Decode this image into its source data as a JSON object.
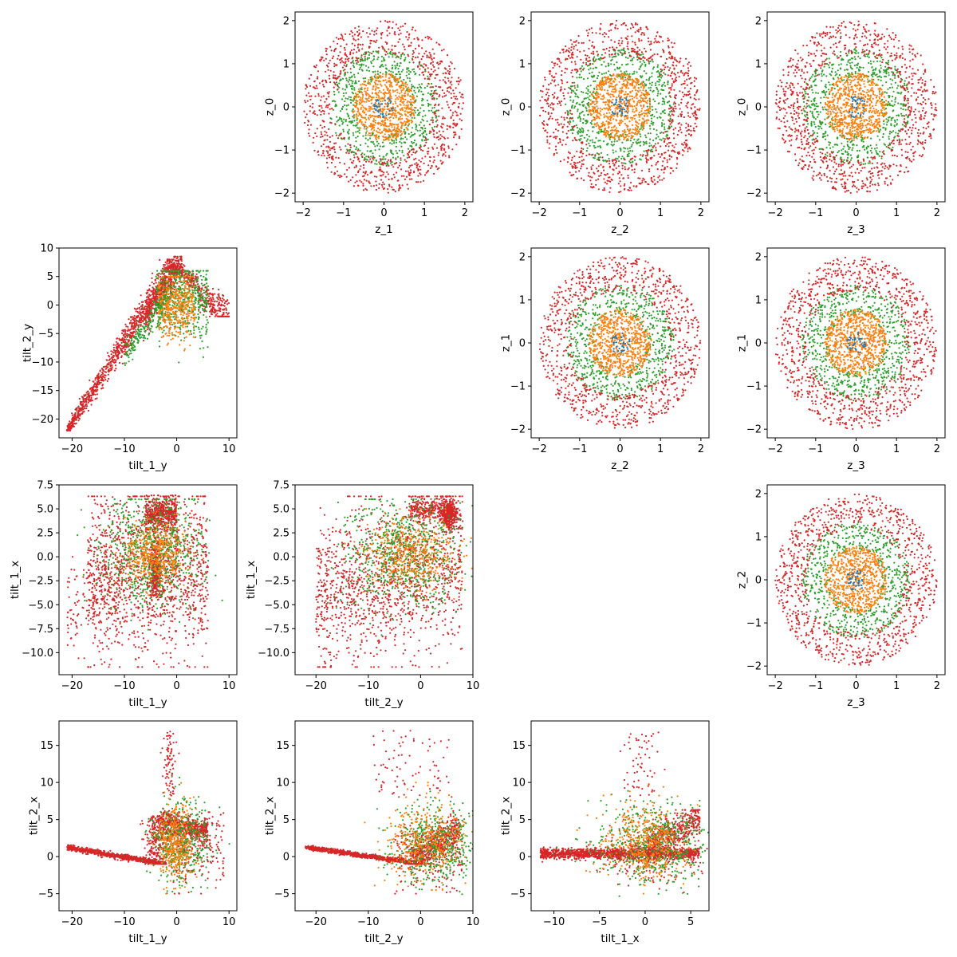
{
  "colors": {
    "blue": "#1f77b4",
    "orange": "#ff7f0e",
    "green": "#2ca02c",
    "red": "#d62728"
  },
  "chart_data": [
    {
      "id": "p01",
      "type": "scatter",
      "xlabel": "z_1",
      "ylabel": "z_0",
      "xlim": [
        -2.2,
        2.2
      ],
      "ylim": [
        -2.2,
        2.2
      ],
      "xticks": [
        -2,
        -1,
        0,
        1,
        2
      ],
      "yticks": [
        -2,
        -1,
        0,
        1,
        2
      ],
      "distribution": "disk",
      "grid": false
    },
    {
      "id": "p02",
      "type": "scatter",
      "xlabel": "z_2",
      "ylabel": "z_0",
      "xlim": [
        -2.2,
        2.2
      ],
      "ylim": [
        -2.2,
        2.2
      ],
      "xticks": [
        -2,
        -1,
        0,
        1,
        2
      ],
      "yticks": [
        -2,
        -1,
        0,
        1,
        2
      ],
      "distribution": "disk",
      "grid": false
    },
    {
      "id": "p03",
      "type": "scatter",
      "xlabel": "z_3",
      "ylabel": "z_0",
      "xlim": [
        -2.2,
        2.2
      ],
      "ylim": [
        -2.2,
        2.2
      ],
      "xticks": [
        -2,
        -1,
        0,
        1,
        2
      ],
      "yticks": [
        -2,
        -1,
        0,
        1,
        2
      ],
      "distribution": "disk",
      "grid": false
    },
    {
      "id": "p10",
      "type": "scatter",
      "xlabel": "tilt_1_y",
      "ylabel": "tilt_2_y",
      "xlim": [
        -22.5,
        11.5
      ],
      "ylim": [
        -23.3,
        10
      ],
      "xticks": [
        -20,
        -10,
        0,
        10
      ],
      "yticks": [
        -20,
        -15,
        -10,
        -5,
        0,
        5,
        10
      ],
      "distribution": "tilt1y_tilt2y",
      "grid": false
    },
    {
      "id": "p12",
      "type": "scatter",
      "xlabel": "z_2",
      "ylabel": "z_1",
      "xlim": [
        -2.2,
        2.2
      ],
      "ylim": [
        -2.2,
        2.2
      ],
      "xticks": [
        -2,
        -1,
        0,
        1,
        2
      ],
      "yticks": [
        -2,
        -1,
        0,
        1,
        2
      ],
      "distribution": "disk",
      "grid": false
    },
    {
      "id": "p13",
      "type": "scatter",
      "xlabel": "z_3",
      "ylabel": "z_1",
      "xlim": [
        -2.2,
        2.2
      ],
      "ylim": [
        -2.2,
        2.2
      ],
      "xticks": [
        -2,
        -1,
        0,
        1,
        2
      ],
      "yticks": [
        -2,
        -1,
        0,
        1,
        2
      ],
      "distribution": "disk",
      "grid": false
    },
    {
      "id": "p20",
      "type": "scatter",
      "xlabel": "tilt_1_y",
      "ylabel": "tilt_1_x",
      "xlim": [
        -22.5,
        11.5
      ],
      "ylim": [
        -12.3,
        7.5
      ],
      "xticks": [
        -20,
        -10,
        0,
        10
      ],
      "yticks": [
        -10.0,
        -7.5,
        -5.0,
        -2.5,
        0.0,
        2.5,
        5.0,
        7.5
      ],
      "ytick_labels": [
        "−10.0",
        "−7.5",
        "−5.0",
        "−2.5",
        "0.0",
        "2.5",
        "5.0",
        "7.5"
      ],
      "distribution": "tilt1y_tilt1x",
      "grid": false
    },
    {
      "id": "p21",
      "type": "scatter",
      "xlabel": "tilt_2_y",
      "ylabel": "tilt_1_x",
      "xlim": [
        -24,
        10
      ],
      "ylim": [
        -12.3,
        7.5
      ],
      "xticks": [
        -20,
        -10,
        0,
        10
      ],
      "yticks": [
        -10.0,
        -7.5,
        -5.0,
        -2.5,
        0.0,
        2.5,
        5.0,
        7.5
      ],
      "ytick_labels": [
        "−10.0",
        "−7.5",
        "−5.0",
        "−2.5",
        "0.0",
        "2.5",
        "5.0",
        "7.5"
      ],
      "distribution": "tilt2y_tilt1x",
      "grid": false
    },
    {
      "id": "p23",
      "type": "scatter",
      "xlabel": "z_3",
      "ylabel": "z_2",
      "xlim": [
        -2.2,
        2.2
      ],
      "ylim": [
        -2.2,
        2.2
      ],
      "xticks": [
        -2,
        -1,
        0,
        1,
        2
      ],
      "yticks": [
        -2,
        -1,
        0,
        1,
        2
      ],
      "distribution": "disk",
      "grid": false
    },
    {
      "id": "p30",
      "type": "scatter",
      "xlabel": "tilt_1_y",
      "ylabel": "tilt_2_x",
      "xlim": [
        -22.5,
        11.5
      ],
      "ylim": [
        -7.3,
        18.3
      ],
      "xticks": [
        -20,
        -10,
        0,
        10
      ],
      "yticks": [
        -5,
        0,
        5,
        10,
        15
      ],
      "distribution": "tilt1y_tilt2x",
      "grid": false
    },
    {
      "id": "p31",
      "type": "scatter",
      "xlabel": "tilt_2_y",
      "ylabel": "tilt_2_x",
      "xlim": [
        -24,
        10
      ],
      "ylim": [
        -7.3,
        18.3
      ],
      "xticks": [
        -20,
        -10,
        0,
        10
      ],
      "yticks": [
        -5,
        0,
        5,
        10,
        15
      ],
      "distribution": "tilt2y_tilt2x",
      "grid": false
    },
    {
      "id": "p32",
      "type": "scatter",
      "xlabel": "tilt_1_x",
      "ylabel": "tilt_2_x",
      "xlim": [
        -12.5,
        7
      ],
      "ylim": [
        -7.3,
        18.3
      ],
      "xticks": [
        -10,
        -5,
        0,
        5
      ],
      "yticks": [
        -5,
        0,
        5,
        10,
        15
      ],
      "distribution": "tilt1x_tilt2x",
      "grid": false
    }
  ]
}
